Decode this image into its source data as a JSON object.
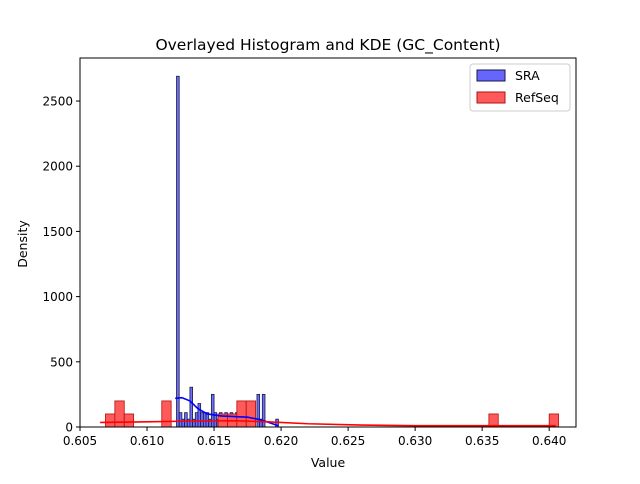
{
  "chart_data": {
    "type": "histogram",
    "title": "Overlayed Histogram and KDE (GC_Content)",
    "xlabel": "Value",
    "ylabel": "Density",
    "xlim": [
      0.605,
      0.642
    ],
    "ylim": [
      0,
      2830
    ],
    "xticks": [
      0.605,
      0.61,
      0.615,
      0.62,
      0.625,
      0.63,
      0.635,
      0.64
    ],
    "xtick_labels": [
      "0.605",
      "0.610",
      "0.615",
      "0.620",
      "0.625",
      "0.630",
      "0.635",
      "0.640"
    ],
    "yticks": [
      0,
      500,
      1000,
      1500,
      2000,
      2500
    ],
    "ytick_labels": [
      "0",
      "500",
      "1000",
      "1500",
      "2000",
      "2500"
    ],
    "grid": false,
    "legend_position": "top-right",
    "series": [
      {
        "name": "SRA",
        "kind": "histogram",
        "color": "#6666ff",
        "edge_color": "#1a1a40",
        "bin_width": 0.0002,
        "bins": [
          {
            "x": 0.6122,
            "y": 2690
          },
          {
            "x": 0.6124,
            "y": 110
          },
          {
            "x": 0.6126,
            "y": 60
          },
          {
            "x": 0.6128,
            "y": 110
          },
          {
            "x": 0.613,
            "y": 60
          },
          {
            "x": 0.6132,
            "y": 305
          },
          {
            "x": 0.6134,
            "y": 60
          },
          {
            "x": 0.6136,
            "y": 110
          },
          {
            "x": 0.6138,
            "y": 180
          },
          {
            "x": 0.614,
            "y": 110
          },
          {
            "x": 0.6142,
            "y": 110
          },
          {
            "x": 0.6144,
            "y": 110
          },
          {
            "x": 0.6146,
            "y": 60
          },
          {
            "x": 0.6148,
            "y": 250
          },
          {
            "x": 0.615,
            "y": 110
          },
          {
            "x": 0.6152,
            "y": 60
          },
          {
            "x": 0.6154,
            "y": 110
          },
          {
            "x": 0.6156,
            "y": 60
          },
          {
            "x": 0.6158,
            "y": 110
          },
          {
            "x": 0.616,
            "y": 60
          },
          {
            "x": 0.6162,
            "y": 110
          },
          {
            "x": 0.6166,
            "y": 110
          },
          {
            "x": 0.617,
            "y": 110
          },
          {
            "x": 0.6174,
            "y": 60
          },
          {
            "x": 0.6178,
            "y": 110
          },
          {
            "x": 0.6182,
            "y": 250
          },
          {
            "x": 0.6184,
            "y": 60
          },
          {
            "x": 0.6186,
            "y": 250
          },
          {
            "x": 0.6196,
            "y": 60
          }
        ],
        "kde": {
          "x": [
            0.6121,
            0.6126,
            0.6132,
            0.6138,
            0.6145,
            0.6155,
            0.6165,
            0.6175,
            0.6185,
            0.6195,
            0.6198
          ],
          "y": [
            220,
            225,
            200,
            140,
            100,
            85,
            80,
            75,
            55,
            20,
            10
          ]
        }
      },
      {
        "name": "RefSeq",
        "kind": "histogram",
        "color": "#ff5a5a",
        "edge_color": "#b01010",
        "bin_width": 0.0007,
        "bins": [
          {
            "x": 0.6069,
            "y": 100
          },
          {
            "x": 0.6076,
            "y": 200
          },
          {
            "x": 0.6083,
            "y": 100
          },
          {
            "x": 0.6111,
            "y": 200
          },
          {
            "x": 0.6153,
            "y": 100
          },
          {
            "x": 0.616,
            "y": 100
          },
          {
            "x": 0.6167,
            "y": 200
          },
          {
            "x": 0.6174,
            "y": 200
          },
          {
            "x": 0.6355,
            "y": 100
          },
          {
            "x": 0.64,
            "y": 100
          }
        ],
        "kde": {
          "x": [
            0.6065,
            0.61,
            0.613,
            0.6165,
            0.619,
            0.622,
            0.626,
            0.63,
            0.634,
            0.637,
            0.6405
          ],
          "y": [
            35,
            40,
            45,
            48,
            40,
            25,
            15,
            10,
            10,
            10,
            10
          ]
        }
      }
    ]
  }
}
